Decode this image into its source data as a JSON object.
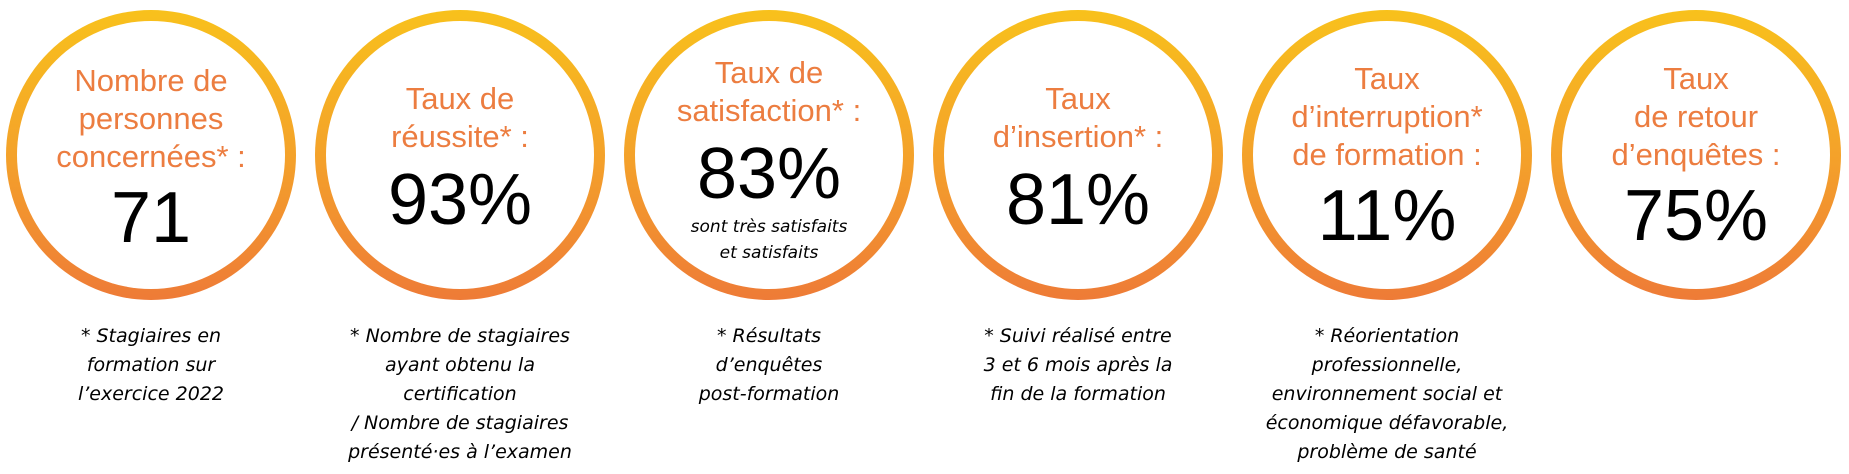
{
  "colors": {
    "ring_top": "#f8c11c",
    "ring_bottom": "#ee7b37",
    "label": "#ec7d40",
    "value": "#000000"
  },
  "stats": [
    {
      "label_lines": [
        "Nombre de",
        "personnes",
        "concernées* :"
      ],
      "value": "71",
      "note_lines": [
        "* Stagiaires en",
        "formation sur",
        "l’exercice 2022"
      ]
    },
    {
      "label_lines": [
        "Taux de",
        "réussite* :"
      ],
      "value": "93%",
      "note_lines": [
        "* Nombre de stagiaires",
        "ayant obtenu la",
        "certification",
        "/ Nombre de stagiaires",
        "présenté·es à l’examen"
      ]
    },
    {
      "label_lines": [
        "Taux de",
        "satisfaction* :"
      ],
      "value": "83%",
      "sub_lines": [
        "sont très satisfaits",
        "et satisfaits"
      ],
      "note_lines": [
        "* Résultats",
        "d’enquêtes",
        "post-formation"
      ]
    },
    {
      "label_lines": [
        "Taux",
        "d’insertion* :"
      ],
      "value": "81%",
      "note_lines": [
        "* Suivi réalisé entre",
        "3 et 6 mois après la",
        "fin de la formation"
      ]
    },
    {
      "label_lines": [
        "Taux",
        "d’interruption*",
        "de formation :"
      ],
      "value": "11%",
      "note_lines": [
        "* Réorientation",
        "professionnelle,",
        "environnement social et",
        "économique défavorable,",
        "problème de santé"
      ]
    },
    {
      "label_lines": [
        "Taux",
        "de retour",
        "d’enquêtes :"
      ],
      "value": "75%"
    }
  ]
}
